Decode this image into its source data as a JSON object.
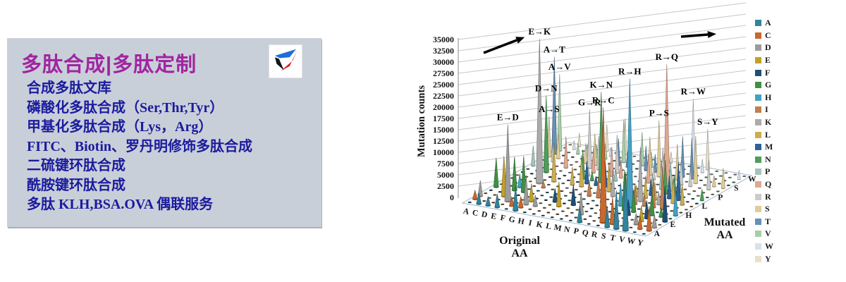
{
  "left_panel": {
    "title": "多肽合成|多肽定制",
    "title_color": "#A125A1",
    "text_color": "#1B1B9E",
    "bg_color": "#C9CFD9",
    "logo_icon": "pinwheel-triangle-logo",
    "logo_colors": {
      "blue": "#1E6FD9",
      "black": "#151515",
      "red": "#E01818"
    },
    "items": [
      "合成多肽文库",
      "磷酸化多肽合成（Ser,Thr,Tyr）",
      "甲基化多肽合成（Lys，Arg）",
      "FITC、Biotin、罗丹明修饰多肽合成",
      "二硫键环肽合成",
      "酰胺键环肽合成",
      "多肽 KLH,BSA.OVA 偶联服务"
    ]
  },
  "chart_data": {
    "type": "bar",
    "style": "3d-cone",
    "title": "",
    "ylabel": "Mutation counts",
    "xlabel": "Original AA",
    "zlabel": "Mutated AA",
    "ylim": [
      0,
      35000
    ],
    "ytick_step": 2500,
    "yticks": [
      "0",
      "2500",
      "5000",
      "7500",
      "10000",
      "12500",
      "15000",
      "17500",
      "20000",
      "22500",
      "25000",
      "27500",
      "30000",
      "32500",
      "35000"
    ],
    "grid": true,
    "legend_position": "right",
    "original_aa": [
      "A",
      "C",
      "D",
      "E",
      "F",
      "G",
      "H",
      "I",
      "K",
      "L",
      "M",
      "N",
      "P",
      "Q",
      "R",
      "S",
      "T",
      "V",
      "W",
      "Y"
    ],
    "mutated_aa": [
      "A",
      "C",
      "D",
      "E",
      "F",
      "G",
      "H",
      "I",
      "K",
      "L",
      "M",
      "N",
      "P",
      "Q",
      "R",
      "S",
      "T",
      "V",
      "W",
      "Y"
    ],
    "mutated_axis_ticks_shown": [
      "A",
      "E",
      "H",
      "L",
      "P",
      "S",
      "W"
    ],
    "decor_icons": [
      "trend-arrow-upper-left",
      "trend-arrow-upper-right"
    ],
    "legend": [
      {
        "label": "A",
        "color": "#31849B"
      },
      {
        "label": "C",
        "color": "#C8682E"
      },
      {
        "label": "D",
        "color": "#9C9C9C"
      },
      {
        "label": "E",
        "color": "#C2A127"
      },
      {
        "label": "F",
        "color": "#1F4E79"
      },
      {
        "label": "G",
        "color": "#3F9142"
      },
      {
        "label": "H",
        "color": "#44A1C4"
      },
      {
        "label": "I",
        "color": "#C07F50"
      },
      {
        "label": "K",
        "color": "#ABABAB"
      },
      {
        "label": "L",
        "color": "#CDAD52"
      },
      {
        "label": "M",
        "color": "#2E6399"
      },
      {
        "label": "N",
        "color": "#4E9D5B"
      },
      {
        "label": "P",
        "color": "#A5C3BB"
      },
      {
        "label": "Q",
        "color": "#E0A890"
      },
      {
        "label": "R",
        "color": "#CBCBCB"
      },
      {
        "label": "S",
        "color": "#E0CD96"
      },
      {
        "label": "T",
        "color": "#6690B4"
      },
      {
        "label": "V",
        "color": "#A8CEA8"
      },
      {
        "label": "W",
        "color": "#D9E1EA"
      },
      {
        "label": "Y",
        "color": "#EADFC8"
      }
    ],
    "annotated_peaks": [
      {
        "label": "E→K",
        "from": "E",
        "to": "K",
        "value": 32000
      },
      {
        "label": "R→H",
        "from": "R",
        "to": "H",
        "value": 28500
      },
      {
        "label": "R→Q",
        "from": "R",
        "to": "Q",
        "value": 27000
      },
      {
        "label": "R→C",
        "from": "R",
        "to": "C",
        "value": 25500
      },
      {
        "label": "A→T",
        "from": "A",
        "to": "T",
        "value": 21500
      },
      {
        "label": "K→N",
        "from": "K",
        "to": "N",
        "value": 20000
      },
      {
        "label": "A→V",
        "from": "A",
        "to": "V",
        "value": 17000
      },
      {
        "label": "D→N",
        "from": "D",
        "to": "N",
        "value": 17000
      },
      {
        "label": "E→D",
        "from": "E",
        "to": "D",
        "value": 17000
      },
      {
        "label": "R→W",
        "from": "R",
        "to": "W",
        "value": 16000
      },
      {
        "label": "G→R",
        "from": "G",
        "to": "R",
        "value": 13000
      },
      {
        "label": "P→S",
        "from": "P",
        "to": "S",
        "value": 12500
      },
      {
        "label": "A→S",
        "from": "A",
        "to": "S",
        "value": 9000
      },
      {
        "label": "S→Y",
        "from": "S",
        "to": "Y",
        "value": 9000
      }
    ],
    "background_spikes": [
      [
        "A",
        "C",
        2000
      ],
      [
        "A",
        "D",
        3500
      ],
      [
        "A",
        "G",
        6500
      ],
      [
        "A",
        "P",
        4500
      ],
      [
        "C",
        "A",
        2500
      ],
      [
        "C",
        "G",
        1500
      ],
      [
        "C",
        "R",
        4000
      ],
      [
        "C",
        "S",
        5500
      ],
      [
        "C",
        "W",
        2000
      ],
      [
        "C",
        "Y",
        3000
      ],
      [
        "D",
        "A",
        2000
      ],
      [
        "D",
        "E",
        9000
      ],
      [
        "D",
        "G",
        7500
      ],
      [
        "D",
        "H",
        3000
      ],
      [
        "D",
        "V",
        2500
      ],
      [
        "D",
        "Y",
        1500
      ],
      [
        "E",
        "A",
        3000
      ],
      [
        "E",
        "G",
        8000
      ],
      [
        "E",
        "Q",
        7000
      ],
      [
        "E",
        "V",
        2500
      ],
      [
        "F",
        "C",
        2000
      ],
      [
        "F",
        "I",
        1500
      ],
      [
        "F",
        "L",
        8500
      ],
      [
        "F",
        "S",
        4500
      ],
      [
        "F",
        "V",
        3000
      ],
      [
        "F",
        "Y",
        6000
      ],
      [
        "G",
        "A",
        5500
      ],
      [
        "G",
        "C",
        2500
      ],
      [
        "G",
        "D",
        6500
      ],
      [
        "G",
        "E",
        4000
      ],
      [
        "G",
        "S",
        7000
      ],
      [
        "G",
        "V",
        3500
      ],
      [
        "G",
        "W",
        2000
      ],
      [
        "H",
        "D",
        2500
      ],
      [
        "H",
        "L",
        4000
      ],
      [
        "H",
        "N",
        6500
      ],
      [
        "H",
        "P",
        2000
      ],
      [
        "H",
        "Q",
        5500
      ],
      [
        "H",
        "R",
        7500
      ],
      [
        "H",
        "Y",
        8000
      ],
      [
        "I",
        "F",
        3000
      ],
      [
        "I",
        "L",
        7000
      ],
      [
        "I",
        "M",
        5000
      ],
      [
        "I",
        "N",
        2000
      ],
      [
        "I",
        "T",
        6000
      ],
      [
        "I",
        "V",
        9500
      ],
      [
        "K",
        "E",
        5500
      ],
      [
        "K",
        "M",
        2000
      ],
      [
        "K",
        "Q",
        6500
      ],
      [
        "K",
        "R",
        8500
      ],
      [
        "K",
        "T",
        3500
      ],
      [
        "L",
        "F",
        4500
      ],
      [
        "L",
        "I",
        3500
      ],
      [
        "L",
        "M",
        6000
      ],
      [
        "L",
        "P",
        2500
      ],
      [
        "L",
        "Q",
        4000
      ],
      [
        "L",
        "V",
        7500
      ],
      [
        "M",
        "I",
        4500
      ],
      [
        "M",
        "K",
        2000
      ],
      [
        "M",
        "L",
        6500
      ],
      [
        "M",
        "T",
        5500
      ],
      [
        "M",
        "V",
        3500
      ],
      [
        "N",
        "D",
        5000
      ],
      [
        "N",
        "H",
        3000
      ],
      [
        "N",
        "K",
        6000
      ],
      [
        "N",
        "S",
        8500
      ],
      [
        "N",
        "T",
        4000
      ],
      [
        "N",
        "Y",
        2500
      ],
      [
        "P",
        "A",
        3500
      ],
      [
        "P",
        "L",
        5500
      ],
      [
        "P",
        "Q",
        6500
      ],
      [
        "P",
        "R",
        3000
      ],
      [
        "P",
        "T",
        4500
      ],
      [
        "Q",
        "E",
        3500
      ],
      [
        "Q",
        "H",
        5000
      ],
      [
        "Q",
        "K",
        6500
      ],
      [
        "Q",
        "L",
        2500
      ],
      [
        "Q",
        "P",
        3000
      ],
      [
        "Q",
        "R",
        7500
      ],
      [
        "R",
        "G",
        9000
      ],
      [
        "R",
        "I",
        4500
      ],
      [
        "R",
        "K",
        12000
      ],
      [
        "R",
        "L",
        5000
      ],
      [
        "R",
        "M",
        3500
      ],
      [
        "R",
        "P",
        6000
      ],
      [
        "R",
        "S",
        8000
      ],
      [
        "R",
        "T",
        9000
      ],
      [
        "S",
        "A",
        4500
      ],
      [
        "S",
        "C",
        6000
      ],
      [
        "S",
        "F",
        3500
      ],
      [
        "S",
        "G",
        5000
      ],
      [
        "S",
        "I",
        2500
      ],
      [
        "S",
        "L",
        4000
      ],
      [
        "S",
        "N",
        7500
      ],
      [
        "S",
        "P",
        6500
      ],
      [
        "S",
        "R",
        5500
      ],
      [
        "S",
        "T",
        9000
      ],
      [
        "S",
        "W",
        3000
      ],
      [
        "T",
        "A",
        8500
      ],
      [
        "T",
        "I",
        6500
      ],
      [
        "T",
        "K",
        3000
      ],
      [
        "T",
        "M",
        5000
      ],
      [
        "T",
        "N",
        4500
      ],
      [
        "T",
        "P",
        2500
      ],
      [
        "T",
        "R",
        3500
      ],
      [
        "T",
        "S",
        10500
      ],
      [
        "V",
        "A",
        13000
      ],
      [
        "V",
        "D",
        2500
      ],
      [
        "V",
        "E",
        3500
      ],
      [
        "V",
        "F",
        4000
      ],
      [
        "V",
        "G",
        5500
      ],
      [
        "V",
        "I",
        9500
      ],
      [
        "V",
        "L",
        6000
      ],
      [
        "V",
        "M",
        8500
      ],
      [
        "W",
        "C",
        3000
      ],
      [
        "W",
        "G",
        2000
      ],
      [
        "W",
        "L",
        4500
      ],
      [
        "W",
        "R",
        6500
      ],
      [
        "W",
        "S",
        2500
      ],
      [
        "Y",
        "C",
        5500
      ],
      [
        "Y",
        "D",
        3000
      ],
      [
        "Y",
        "F",
        8000
      ],
      [
        "Y",
        "H",
        6000
      ],
      [
        "Y",
        "N",
        2500
      ],
      [
        "Y",
        "S",
        4500
      ],
      [
        "Y",
        "W",
        2000
      ]
    ]
  }
}
